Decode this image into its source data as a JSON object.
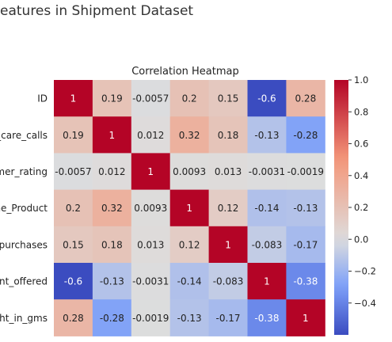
{
  "page": {
    "title": "eatures in Shipment Dataset"
  },
  "chart_data": {
    "type": "heatmap",
    "title": "Correlation Heatmap",
    "row_labels": [
      "ID",
      "r_care_calls",
      "omer_rating",
      "the_Product",
      "_purchases",
      "unt_offered",
      "ght_in_gms"
    ],
    "values": [
      [
        1,
        0.19,
        -0.0057,
        0.2,
        0.15,
        -0.6,
        0.28
      ],
      [
        0.19,
        1,
        0.012,
        0.32,
        0.18,
        -0.13,
        -0.28
      ],
      [
        -0.0057,
        0.012,
        1,
        0.0093,
        0.013,
        -0.0031,
        -0.0019
      ],
      [
        0.2,
        0.32,
        0.0093,
        1,
        0.12,
        -0.14,
        -0.13
      ],
      [
        0.15,
        0.18,
        0.013,
        0.12,
        1,
        -0.083,
        -0.17
      ],
      [
        -0.6,
        -0.13,
        -0.0031,
        -0.14,
        -0.083,
        1,
        -0.38
      ],
      [
        0.28,
        -0.28,
        -0.0019,
        -0.13,
        -0.17,
        -0.38,
        1
      ]
    ],
    "cell_labels": [
      [
        "1",
        "0.19",
        "-0.0057",
        "0.2",
        "0.15",
        "-0.6",
        "0.28"
      ],
      [
        "0.19",
        "1",
        "0.012",
        "0.32",
        "0.18",
        "-0.13",
        "-0.28"
      ],
      [
        "-0.0057",
        "0.012",
        "1",
        "0.0093",
        "0.013",
        "-0.0031",
        "-0.0019"
      ],
      [
        "0.2",
        "0.32",
        "0.0093",
        "1",
        "0.12",
        "-0.14",
        "-0.13"
      ],
      [
        "0.15",
        "0.18",
        "0.013",
        "0.12",
        "1",
        "-0.083",
        "-0.17"
      ],
      [
        "-0.6",
        "-0.13",
        "-0.0031",
        "-0.14",
        "-0.083",
        "1",
        "-0.38"
      ],
      [
        "0.28",
        "-0.28",
        "-0.0019",
        "-0.13",
        "-0.17",
        "-0.38",
        "1"
      ]
    ],
    "colormap": "coolwarm",
    "colors": {
      "low": "#3b4cc0",
      "mid": "#dddddd",
      "high": "#b40426"
    },
    "colorbar": {
      "range": [
        -0.6,
        1.0
      ],
      "ticks": [
        1.0,
        0.8,
        0.6,
        0.4,
        0.2,
        0.0,
        -0.2,
        -0.4
      ],
      "tick_labels": [
        "1.0",
        "0.8",
        "0.6",
        "0.4",
        "0.2",
        "0.0",
        "−0.2",
        "−0.4"
      ]
    }
  }
}
